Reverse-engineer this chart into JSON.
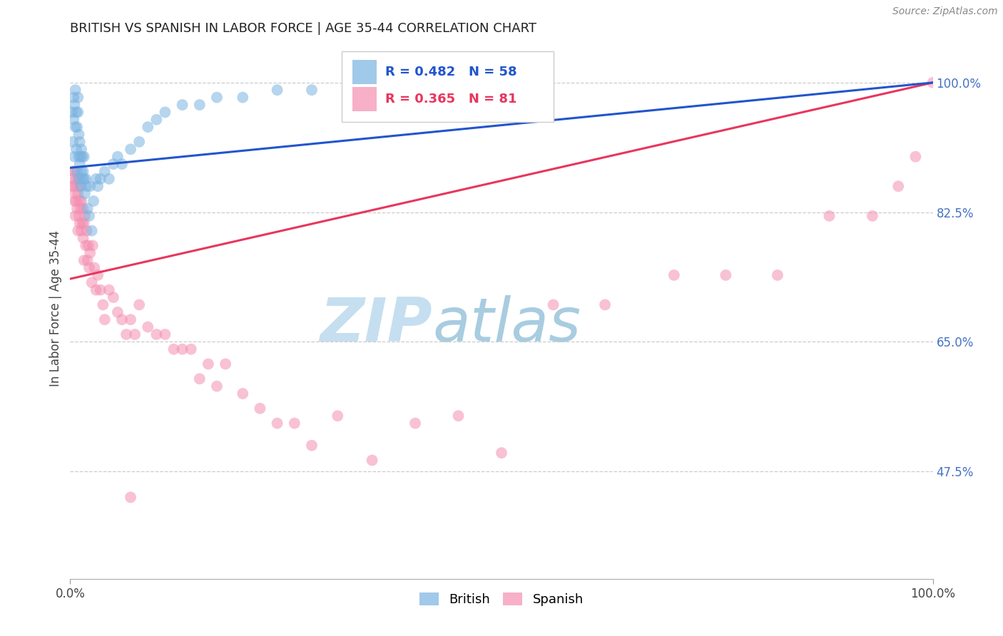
{
  "title": "BRITISH VS SPANISH IN LABOR FORCE | AGE 35-44 CORRELATION CHART",
  "source_text": "Source: ZipAtlas.com",
  "ylabel": "In Labor Force | Age 35-44",
  "xlim": [
    0.0,
    1.0
  ],
  "ylim": [
    0.33,
    1.06
  ],
  "ytick_vals": [
    0.475,
    0.65,
    0.825,
    1.0
  ],
  "ytick_labels": [
    "47.5%",
    "65.0%",
    "82.5%",
    "100.0%"
  ],
  "xtick_vals": [
    0.0,
    1.0
  ],
  "xtick_labels": [
    "0.0%",
    "100.0%"
  ],
  "legend_r_british": "R = 0.482",
  "legend_n_british": "N = 58",
  "legend_r_spanish": "R = 0.365",
  "legend_n_spanish": "N = 81",
  "blue_dot_color": "#7ab3e0",
  "pink_dot_color": "#f48fb1",
  "blue_line_color": "#2255cc",
  "pink_line_color": "#e8365d",
  "background_color": "#ffffff",
  "title_color": "#222222",
  "source_color": "#888888",
  "ylabel_color": "#444444",
  "ytick_color": "#4472c4",
  "xtick_color": "#444444",
  "grid_color": "#cccccc",
  "watermark_zip_color": "#c5dff0",
  "watermark_atlas_color": "#a8cce0",
  "brit_line_y0": 0.885,
  "brit_line_y1": 1.0,
  "span_line_y0": 0.735,
  "span_line_y1": 1.0,
  "british_x": [
    0.002,
    0.003,
    0.004,
    0.004,
    0.005,
    0.005,
    0.006,
    0.006,
    0.007,
    0.007,
    0.008,
    0.008,
    0.009,
    0.009,
    0.01,
    0.01,
    0.01,
    0.011,
    0.011,
    0.012,
    0.012,
    0.013,
    0.013,
    0.014,
    0.014,
    0.015,
    0.016,
    0.016,
    0.017,
    0.018,
    0.019,
    0.02,
    0.022,
    0.023,
    0.025,
    0.027,
    0.03,
    0.032,
    0.035,
    0.04,
    0.045,
    0.05,
    0.055,
    0.06,
    0.07,
    0.08,
    0.09,
    0.1,
    0.11,
    0.13,
    0.15,
    0.17,
    0.2,
    0.24,
    0.28,
    0.33,
    0.4,
    0.5
  ],
  "british_y": [
    0.96,
    0.92,
    0.95,
    0.98,
    0.9,
    0.97,
    0.94,
    0.99,
    0.91,
    0.96,
    0.88,
    0.94,
    0.96,
    0.98,
    0.87,
    0.9,
    0.93,
    0.89,
    0.92,
    0.86,
    0.9,
    0.88,
    0.91,
    0.87,
    0.9,
    0.88,
    0.87,
    0.9,
    0.85,
    0.87,
    0.86,
    0.83,
    0.82,
    0.86,
    0.8,
    0.84,
    0.87,
    0.86,
    0.87,
    0.88,
    0.87,
    0.89,
    0.9,
    0.89,
    0.91,
    0.92,
    0.94,
    0.95,
    0.96,
    0.97,
    0.97,
    0.98,
    0.98,
    0.99,
    0.99,
    0.995,
    0.998,
    1.0
  ],
  "spanish_x": [
    0.002,
    0.003,
    0.004,
    0.004,
    0.005,
    0.005,
    0.006,
    0.006,
    0.007,
    0.007,
    0.008,
    0.008,
    0.009,
    0.009,
    0.01,
    0.01,
    0.011,
    0.011,
    0.012,
    0.012,
    0.013,
    0.013,
    0.014,
    0.015,
    0.015,
    0.016,
    0.016,
    0.017,
    0.018,
    0.019,
    0.02,
    0.021,
    0.022,
    0.023,
    0.025,
    0.026,
    0.028,
    0.03,
    0.032,
    0.035,
    0.038,
    0.04,
    0.045,
    0.05,
    0.055,
    0.06,
    0.065,
    0.07,
    0.075,
    0.08,
    0.09,
    0.1,
    0.11,
    0.12,
    0.13,
    0.14,
    0.15,
    0.16,
    0.17,
    0.18,
    0.2,
    0.22,
    0.24,
    0.26,
    0.28,
    0.31,
    0.35,
    0.4,
    0.45,
    0.5,
    0.56,
    0.62,
    0.7,
    0.76,
    0.82,
    0.88,
    0.93,
    0.96,
    0.98,
    1.0,
    0.07
  ],
  "spanish_y": [
    0.86,
    0.87,
    0.88,
    0.86,
    0.84,
    0.88,
    0.85,
    0.82,
    0.87,
    0.84,
    0.86,
    0.83,
    0.85,
    0.8,
    0.82,
    0.87,
    0.84,
    0.81,
    0.83,
    0.86,
    0.8,
    0.84,
    0.81,
    0.79,
    0.83,
    0.81,
    0.76,
    0.82,
    0.78,
    0.8,
    0.76,
    0.78,
    0.75,
    0.77,
    0.73,
    0.78,
    0.75,
    0.72,
    0.74,
    0.72,
    0.7,
    0.68,
    0.72,
    0.71,
    0.69,
    0.68,
    0.66,
    0.68,
    0.66,
    0.7,
    0.67,
    0.66,
    0.66,
    0.64,
    0.64,
    0.64,
    0.6,
    0.62,
    0.59,
    0.62,
    0.58,
    0.56,
    0.54,
    0.54,
    0.51,
    0.55,
    0.49,
    0.54,
    0.55,
    0.5,
    0.7,
    0.7,
    0.74,
    0.74,
    0.74,
    0.82,
    0.82,
    0.86,
    0.9,
    1.0,
    0.44
  ]
}
